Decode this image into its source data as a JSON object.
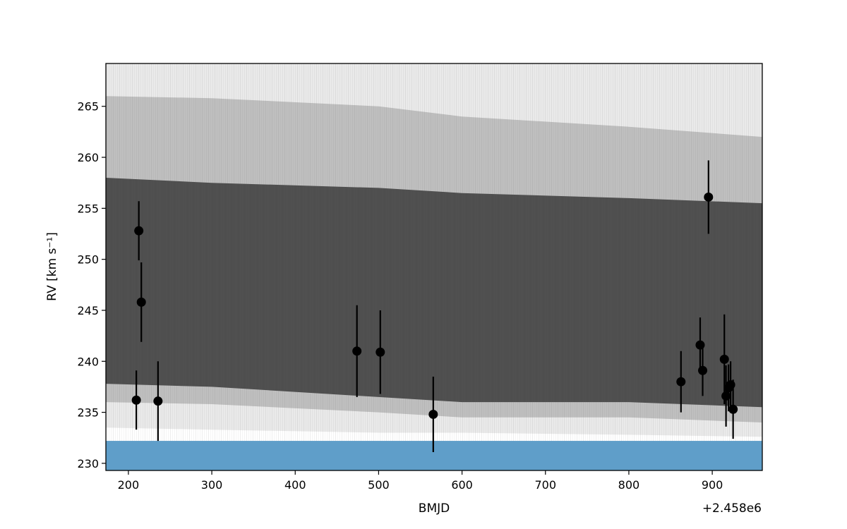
{
  "chart_data": {
    "type": "scatter",
    "title": "",
    "xlabel": "BMJD",
    "ylabel": "RV [km s⁻¹]",
    "x_offset_label": "+2.458e6",
    "xlim": [
      173,
      960
    ],
    "ylim": [
      229.3,
      269.2
    ],
    "xticks": [
      200,
      300,
      400,
      500,
      600,
      700,
      800,
      900
    ],
    "yticks": [
      230,
      235,
      240,
      245,
      250,
      255,
      260,
      265
    ],
    "grid": false,
    "legend": "none",
    "band": {
      "y_from": 229.3,
      "y_to": 232.2,
      "color": "#5f9ec9"
    },
    "model_envelope": [
      {
        "x": 173,
        "outer_low": 233.5,
        "outer_high": 269.2,
        "mid_low": 236.0,
        "mid_high": 266.0,
        "inner_low": 237.8,
        "inner_high": 258.0
      },
      {
        "x": 300,
        "outer_low": 233.3,
        "outer_high": 269.2,
        "mid_low": 235.8,
        "mid_high": 265.8,
        "inner_low": 237.5,
        "inner_high": 257.5
      },
      {
        "x": 500,
        "outer_low": 233.0,
        "outer_high": 269.2,
        "mid_low": 235.0,
        "mid_high": 265.0,
        "inner_low": 236.5,
        "inner_high": 257.0
      },
      {
        "x": 600,
        "outer_low": 233.0,
        "outer_high": 269.2,
        "mid_low": 234.5,
        "mid_high": 264.0,
        "inner_low": 236.0,
        "inner_high": 256.5
      },
      {
        "x": 800,
        "outer_low": 232.8,
        "outer_high": 269.2,
        "mid_low": 234.5,
        "mid_high": 263.0,
        "inner_low": 236.0,
        "inner_high": 256.0
      },
      {
        "x": 960,
        "outer_low": 232.6,
        "outer_high": 269.2,
        "mid_low": 234.0,
        "mid_high": 262.0,
        "inner_low": 235.5,
        "inner_high": 255.5
      }
    ],
    "points": [
      {
        "x": 209.5,
        "y": 236.2,
        "err": 2.9
      },
      {
        "x": 212.5,
        "y": 252.8,
        "err": 2.9
      },
      {
        "x": 215.5,
        "y": 245.8,
        "err": 3.9
      },
      {
        "x": 235.5,
        "y": 236.1,
        "err": 3.9
      },
      {
        "x": 474.0,
        "y": 241.0,
        "err": 4.5
      },
      {
        "x": 502.0,
        "y": 240.9,
        "err": 4.1
      },
      {
        "x": 565.5,
        "y": 234.8,
        "err": 3.7
      },
      {
        "x": 862.5,
        "y": 238.0,
        "err": 3.0
      },
      {
        "x": 885.5,
        "y": 241.6,
        "err": 2.7
      },
      {
        "x": 888.5,
        "y": 239.1,
        "err": 2.5
      },
      {
        "x": 895.5,
        "y": 256.1,
        "err": 3.6
      },
      {
        "x": 914.5,
        "y": 240.2,
        "err": 4.4
      },
      {
        "x": 916.5,
        "y": 236.6,
        "err": 3.0
      },
      {
        "x": 919.5,
        "y": 237.4,
        "err": 2.3
      },
      {
        "x": 922.0,
        "y": 237.7,
        "err": 2.3
      },
      {
        "x": 925.0,
        "y": 235.3,
        "err": 2.9
      }
    ]
  }
}
